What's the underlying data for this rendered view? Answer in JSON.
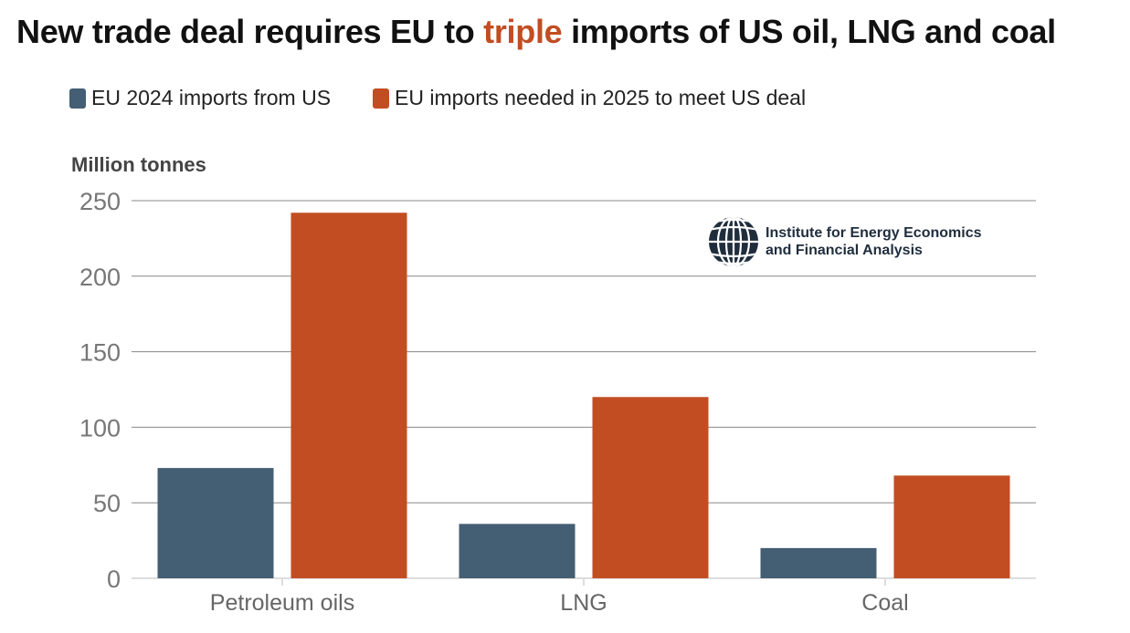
{
  "title": {
    "before": "New trade deal requires EU to ",
    "highlight": "triple",
    "after": " imports of US oil, LNG and coal"
  },
  "logo": {
    "line1": "Institute for Energy Economics",
    "line2": "and Financial Analysis"
  },
  "chart_data": {
    "type": "bar",
    "ylabel": "Million tonnes",
    "xlabel": "",
    "ylim": [
      0,
      250
    ],
    "yticks": [
      0,
      50,
      100,
      150,
      200,
      250
    ],
    "grid": true,
    "legend_position": "top-left",
    "categories": [
      "Petroleum oils",
      "LNG",
      "Coal"
    ],
    "series": [
      {
        "name": "EU 2024 imports from US",
        "color": "#445e74",
        "values": [
          73,
          36,
          20
        ]
      },
      {
        "name": "EU imports needed in 2025 to meet US deal",
        "color": "#c24d22",
        "values": [
          242,
          120,
          68
        ]
      }
    ]
  }
}
